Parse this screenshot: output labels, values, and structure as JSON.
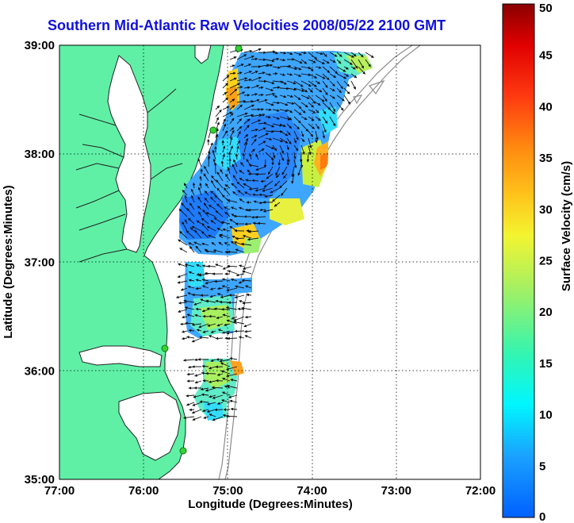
{
  "title": "Southern Mid-Atlantic Raw Velocities 2008/05/22 2100 GMT",
  "chart_data": {
    "type": "heatmap",
    "title": "Southern Mid-Atlantic Raw Velocities 2008/05/22 2100 GMT",
    "xlabel": "Longitude (Degrees:Minutes)",
    "ylabel": "Latitude (Degrees:Minutes)",
    "x_ticks": [
      "77:00",
      "76:00",
      "75:00",
      "74:00",
      "73:00",
      "72:00"
    ],
    "y_ticks": [
      "39:00",
      "38:00",
      "37:00",
      "36:00",
      "35:00"
    ],
    "xlim": [
      -77,
      -72
    ],
    "ylim": [
      35,
      39
    ],
    "grid": true,
    "colorbar": {
      "label": "Surface Velocity (cm/s)",
      "ticks": [
        "0",
        "5",
        "10",
        "15",
        "20",
        "25",
        "30",
        "35",
        "40",
        "45",
        "50"
      ],
      "range": [
        0,
        50
      ]
    },
    "colors": {
      "land": "#5ff0a6",
      "ocean": "#ffffff",
      "coast": "#222222",
      "bathymetry": "#8c8c8c",
      "station": "#34d234"
    }
  }
}
